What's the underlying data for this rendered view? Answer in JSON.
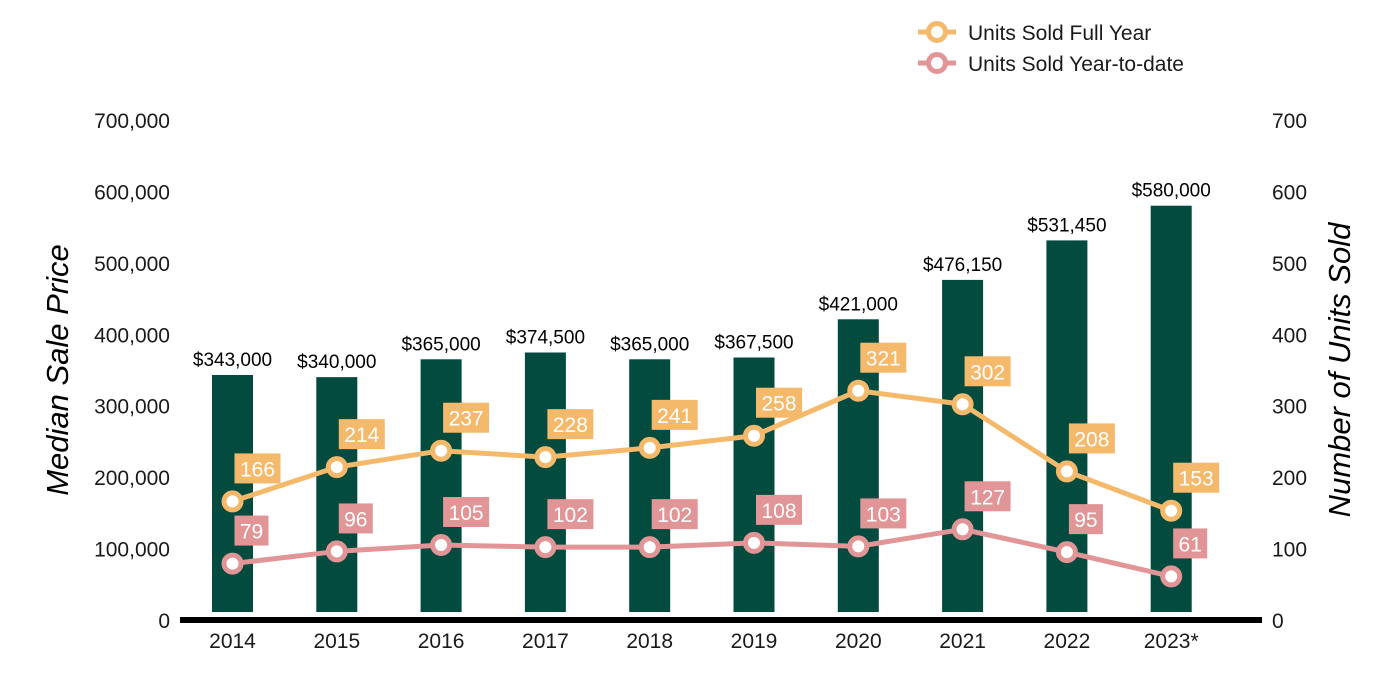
{
  "chart_data": {
    "type": "bar",
    "title": "",
    "categories": [
      "2014",
      "2015",
      "2016",
      "2017",
      "2018",
      "2019",
      "2020",
      "2021",
      "2022",
      "2023*"
    ],
    "bar_series": {
      "values": [
        343000,
        340000,
        365000,
        374500,
        365000,
        367500,
        421000,
        476150,
        531450,
        580000
      ],
      "labels": [
        "$343,000",
        "$340,000",
        "$365,000",
        "$374,500",
        "$365,000",
        "$367,500",
        "$421,000",
        "$476,150",
        "$531,450",
        "$580,000"
      ],
      "color": "#034a3f",
      "axis": "left"
    },
    "line_series": [
      {
        "name": "Units Sold Full Year",
        "values": [
          166,
          214,
          237,
          228,
          241,
          258,
          321,
          302,
          208,
          153
        ],
        "color": "#f5b96b",
        "axis": "right"
      },
      {
        "name": "Units Sold Year-to-date",
        "values": [
          79,
          96,
          105,
          102,
          102,
          108,
          103,
          127,
          95,
          61
        ],
        "color": "#e29596",
        "axis": "right"
      }
    ],
    "ylabel_left": "Median Sale Price",
    "ylabel_right": "Number of Units Sold",
    "ylim_left": [
      0,
      700000
    ],
    "ylim_right": [
      0,
      700
    ],
    "yticks_left": [
      "0",
      "100,000",
      "200,000",
      "300,000",
      "400,000",
      "500,000",
      "600,000",
      "700,000"
    ],
    "yticks_right": [
      "0",
      "100",
      "200",
      "300",
      "400",
      "500",
      "600",
      "700"
    ],
    "grid": false,
    "legend_position": "top-right"
  }
}
